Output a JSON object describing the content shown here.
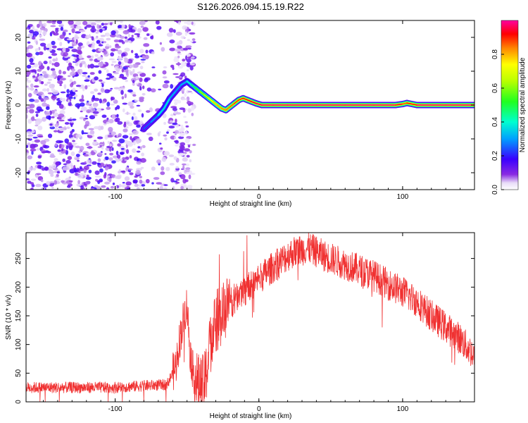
{
  "title": "S126.2026.094.15.19.R22",
  "colors": {
    "snr_line": "#f03030",
    "track_core": "#e8202a",
    "frame": "#000000"
  },
  "chart_data": [
    {
      "type": "heatmap",
      "name": "spectrogram",
      "title": "S126.2026.094.15.19.R22",
      "xlabel": "Height of straight line (km)",
      "ylabel": "Frequency (Hz)",
      "xlim": [
        -162,
        150
      ],
      "ylim": [
        -25,
        25
      ],
      "xticks": [
        -100,
        0,
        100
      ],
      "yticks": [
        -20,
        -10,
        0,
        10,
        20
      ],
      "noise_region_x": [
        -162,
        -45
      ],
      "track": {
        "x": [
          -80,
          -75,
          -70,
          -66,
          -62,
          -58,
          -54,
          -50,
          -47,
          -44,
          -41,
          -38,
          -35,
          -32,
          -29,
          -26,
          -23,
          -20,
          -17,
          -14,
          -11,
          -8,
          -5,
          -2,
          2,
          10,
          20,
          40,
          60,
          80,
          95,
          100,
          103,
          110,
          130,
          150
        ],
        "freq": [
          -7,
          -5,
          -3,
          -1,
          2,
          4,
          6,
          7,
          6,
          5,
          4,
          3,
          2,
          1,
          0,
          -1,
          -1.5,
          -0.5,
          0.5,
          1.5,
          2,
          1.5,
          1,
          0.5,
          0,
          0,
          0,
          0,
          0,
          0,
          0,
          0.3,
          0.6,
          0,
          0,
          0
        ],
        "intensity": [
          0.25,
          0.25,
          0.35,
          0.4,
          0.35,
          0.3,
          0.3,
          0.35,
          0.45,
          0.5,
          0.6,
          0.65,
          0.7,
          0.75,
          0.8,
          0.82,
          0.85,
          0.85,
          0.88,
          0.9,
          0.9,
          0.92,
          0.95,
          0.95,
          0.97,
          0.98,
          0.98,
          0.98,
          0.98,
          0.98,
          0.98,
          0.9,
          0.85,
          0.98,
          0.98,
          0.98
        ]
      },
      "colorbar": {
        "label": "Normalized spectral amplitude",
        "range": [
          0,
          1
        ],
        "ticks": [
          "0.0",
          "0.2",
          "0.4",
          "0.6",
          "0.8"
        ]
      }
    },
    {
      "type": "line",
      "name": "snr",
      "xlabel": "Height of straight line (km)",
      "ylabel": "SNR (10 * v/v)",
      "xlim": [
        -162,
        150
      ],
      "ylim": [
        0,
        295
      ],
      "xticks": [
        -100,
        0,
        100
      ],
      "yticks": [
        0,
        50,
        100,
        150,
        200,
        250
      ],
      "series": [
        {
          "name": "SNR",
          "x": [
            -162,
            -140,
            -120,
            -100,
            -80,
            -64,
            -58,
            -55,
            -52,
            -50,
            -48,
            -46,
            -44,
            -42,
            -40,
            -38,
            -36,
            -34,
            -32,
            -30,
            -28,
            -26,
            -24,
            -20,
            -15,
            -10,
            -5,
            0,
            5,
            10,
            15,
            20,
            25,
            30,
            35,
            40,
            45,
            50,
            60,
            70,
            80,
            90,
            100,
            110,
            120,
            130,
            140,
            150
          ],
          "y": [
            25,
            25,
            25,
            25,
            28,
            30,
            60,
            110,
            150,
            170,
            90,
            55,
            40,
            30,
            28,
            30,
            60,
            100,
            120,
            140,
            145,
            150,
            160,
            170,
            185,
            195,
            205,
            215,
            225,
            235,
            245,
            255,
            262,
            265,
            268,
            262,
            255,
            250,
            240,
            230,
            220,
            205,
            192,
            175,
            150,
            130,
            110,
            80
          ]
        }
      ]
    }
  ]
}
